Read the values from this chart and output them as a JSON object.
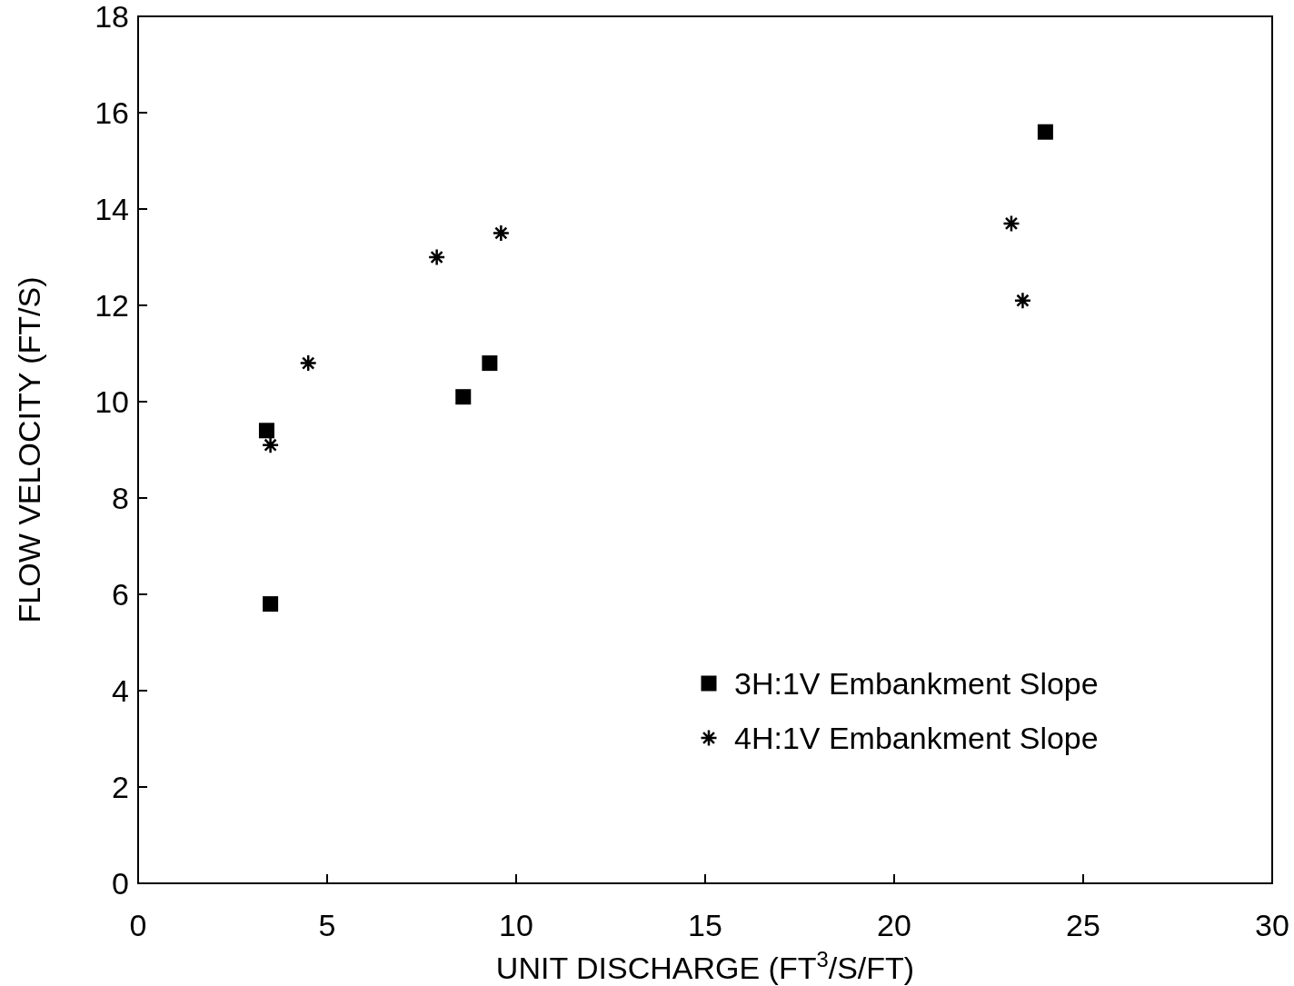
{
  "chart_data": {
    "type": "scatter",
    "xlabel": "UNIT DISCHARGE (FT$^{3}$/S/FT)",
    "ylabel": "FLOW VELOCITY (FT/S)",
    "xlim": [
      0,
      30
    ],
    "xticks": [
      0,
      5,
      10,
      15,
      20,
      25,
      30
    ],
    "ylim": [
      0,
      18
    ],
    "yticks": [
      0,
      2,
      4,
      6,
      8,
      10,
      12,
      14,
      16,
      18
    ],
    "grid": false,
    "legend": "bottom right",
    "series": [
      {
        "name": "3H:1V Embankment Slope",
        "color": "#000000",
        "marker": "square",
        "x": [
          3.4,
          3.5,
          8.6,
          9.3,
          24.0
        ],
        "values": [
          9.4,
          5.8,
          10.1,
          10.8,
          15.6
        ]
      },
      {
        "name": "4H:1V Embankment Slope",
        "color": "#000000",
        "marker": "cross",
        "x": [
          3.5,
          4.5,
          7.9,
          9.6,
          23.1,
          23.4
        ],
        "values": [
          9.1,
          10.8,
          13.0,
          13.5,
          13.7,
          12.1
        ]
      }
    ]
  }
}
